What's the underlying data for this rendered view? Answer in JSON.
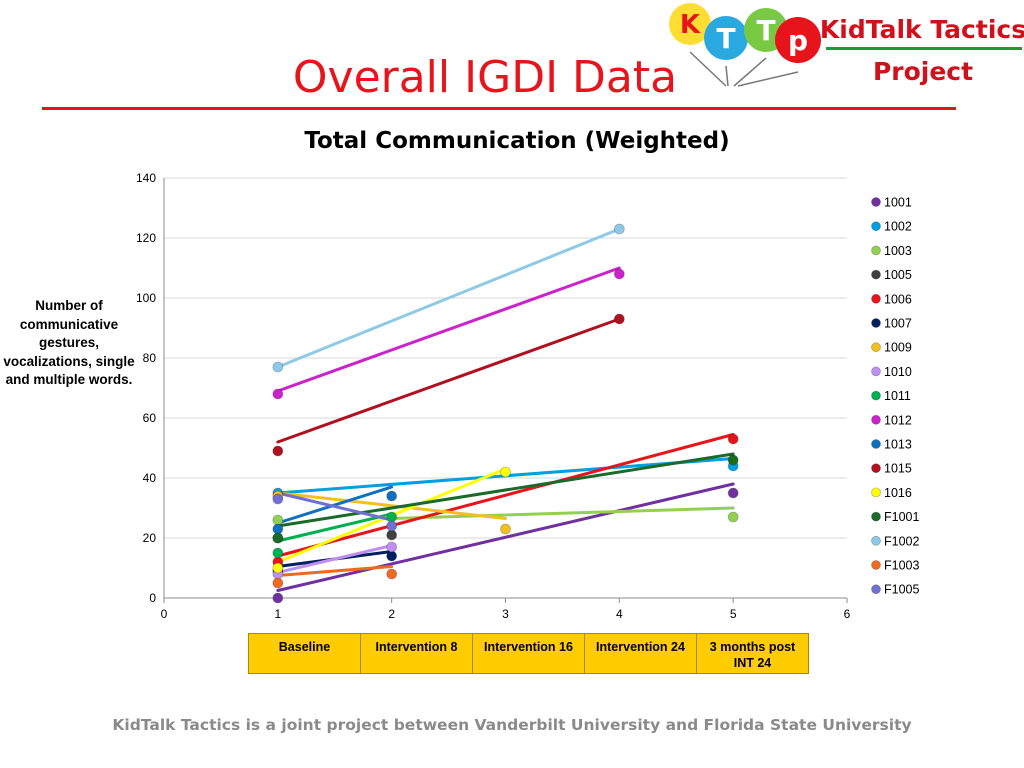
{
  "slide": {
    "title": "Overall IGDI Data",
    "footer": "KidTalk Tactics is a joint project between Vanderbilt University and Florida State University"
  },
  "logo": {
    "balloon_letters": [
      "K",
      "T",
      "T",
      "p"
    ],
    "text_line1": "KidTalk Tactics",
    "text_line2": "Project",
    "colors": {
      "text": "#d0101a",
      "rule": "#1a9a3a"
    }
  },
  "phases": [
    "Baseline",
    "Intervention 8",
    "Intervention 16",
    "Intervention 24",
    "3 months post INT 24"
  ],
  "colors": {
    "title_red": "#e8141c",
    "phase_fill": "#ffcc00",
    "footer_gray": "#8a8a8a"
  },
  "chart_data": {
    "type": "scatter",
    "title": "Total Communication (Weighted)",
    "ylabel": "Number of communicative gestures, vocalizations, single and multiple words.",
    "xlabel": "",
    "xlim": [
      0,
      6
    ],
    "ylim": [
      0,
      140
    ],
    "xticks": [
      0,
      1,
      2,
      3,
      4,
      5,
      6
    ],
    "yticks": [
      0,
      20,
      40,
      60,
      80,
      100,
      120,
      140
    ],
    "grid": "horizontal",
    "legend_position": "right",
    "trendline": "linear",
    "series": [
      {
        "name": "1001",
        "color": "#7030a0",
        "points": [
          [
            1,
            0
          ],
          [
            5,
            35
          ]
        ],
        "trend": [
          [
            1,
            2.5
          ],
          [
            5,
            38
          ]
        ]
      },
      {
        "name": "1002",
        "color": "#00a0e0",
        "points": [
          [
            1,
            35
          ],
          [
            5,
            44
          ]
        ],
        "trend": [
          [
            1,
            35
          ],
          [
            5,
            46.5
          ]
        ]
      },
      {
        "name": "1003",
        "color": "#92d050",
        "points": [
          [
            1,
            26
          ],
          [
            5,
            27
          ]
        ],
        "trend": [
          [
            2,
            26.5
          ],
          [
            5,
            30
          ]
        ]
      },
      {
        "name": "1005",
        "color": "#404040",
        "points": [
          [
            1,
            20
          ],
          [
            2,
            21
          ]
        ],
        "trend": [
          [
            2,
            21
          ],
          [
            2,
            21
          ]
        ]
      },
      {
        "name": "1006",
        "color": "#e8141c",
        "points": [
          [
            1,
            12
          ],
          [
            5,
            53
          ]
        ],
        "trend": [
          [
            1,
            14
          ],
          [
            5,
            54.5
          ]
        ]
      },
      {
        "name": "1007",
        "color": "#002060",
        "points": [
          [
            1,
            9
          ],
          [
            2,
            14
          ]
        ],
        "trend": [
          [
            1,
            10.5
          ],
          [
            2,
            15.5
          ]
        ]
      },
      {
        "name": "1009",
        "color": "#f0c020",
        "points": [
          [
            1,
            34
          ],
          [
            3,
            23
          ]
        ],
        "trend": [
          [
            1,
            35
          ],
          [
            3,
            26.5
          ]
        ]
      },
      {
        "name": "1010",
        "color": "#c090f0",
        "points": [
          [
            1,
            8
          ],
          [
            2,
            17
          ]
        ],
        "trend": [
          [
            1,
            8.5
          ],
          [
            2,
            17.5
          ]
        ]
      },
      {
        "name": "1011",
        "color": "#00b050",
        "points": [
          [
            1,
            15
          ],
          [
            2,
            27
          ]
        ],
        "trend": [
          [
            1,
            19
          ],
          [
            2,
            28
          ]
        ]
      },
      {
        "name": "1012",
        "color": "#cc22cc",
        "points": [
          [
            1,
            68
          ],
          [
            4,
            108
          ]
        ],
        "trend": [
          [
            1,
            69
          ],
          [
            4,
            110
          ]
        ]
      },
      {
        "name": "1013",
        "color": "#1070c0",
        "points": [
          [
            1,
            23
          ],
          [
            2,
            34
          ]
        ],
        "trend": [
          [
            1,
            25
          ],
          [
            2,
            37
          ]
        ]
      },
      {
        "name": "1015",
        "color": "#b01020",
        "points": [
          [
            1,
            49
          ],
          [
            4,
            93
          ]
        ],
        "trend": [
          [
            1,
            52
          ],
          [
            4,
            93
          ]
        ]
      },
      {
        "name": "1016",
        "color": "#ffff00",
        "points": [
          [
            1,
            10
          ],
          [
            3,
            42
          ]
        ],
        "trend": [
          [
            1,
            12
          ],
          [
            3,
            43
          ]
        ]
      },
      {
        "name": "F1001",
        "color": "#1a6b2a",
        "points": [
          [
            1,
            20
          ],
          [
            5,
            46
          ]
        ],
        "trend": [
          [
            1,
            24
          ],
          [
            5,
            48
          ]
        ]
      },
      {
        "name": "F1002",
        "color": "#8ecae6",
        "points": [
          [
            1,
            77
          ],
          [
            4,
            123
          ]
        ],
        "trend": [
          [
            1,
            77
          ],
          [
            4,
            123
          ]
        ]
      },
      {
        "name": "F1003",
        "color": "#ee6a20",
        "points": [
          [
            1,
            5
          ],
          [
            2,
            8
          ]
        ],
        "trend": [
          [
            1,
            7.5
          ],
          [
            2,
            10.5
          ]
        ]
      },
      {
        "name": "F1005",
        "color": "#7070d0",
        "points": [
          [
            1,
            33
          ],
          [
            2,
            24
          ]
        ],
        "trend": [
          [
            1,
            35
          ],
          [
            2,
            26
          ]
        ]
      }
    ]
  }
}
